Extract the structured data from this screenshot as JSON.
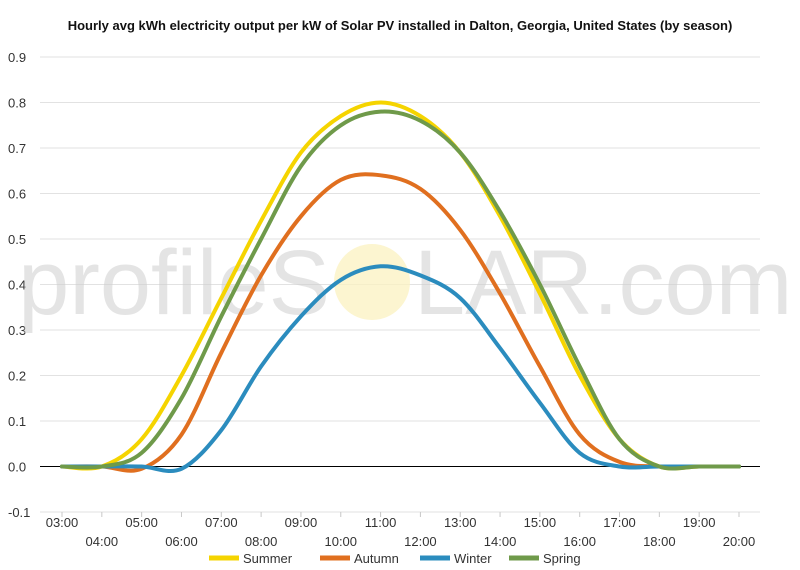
{
  "chart_data": {
    "type": "line",
    "title": "Hourly avg kWh electricity output per kW of Solar PV installed in Dalton, Georgia, United States (by season)",
    "xlabel": "",
    "ylabel": "",
    "x_ticks": [
      "03:00",
      "04:00",
      "05:00",
      "06:00",
      "07:00",
      "08:00",
      "09:00",
      "10:00",
      "11:00",
      "12:00",
      "13:00",
      "14:00",
      "15:00",
      "16:00",
      "17:00",
      "18:00",
      "19:00",
      "20:00"
    ],
    "y_ticks": [
      "-0.1",
      "0.0",
      "0.1",
      "0.2",
      "0.3",
      "0.4",
      "0.5",
      "0.6",
      "0.7",
      "0.8",
      "0.9"
    ],
    "ylim": [
      -0.1,
      0.9
    ],
    "grid": true,
    "legend_position": "bottom",
    "watermark": {
      "left": "profileS",
      "right": "LAR.com"
    },
    "series": [
      {
        "name": "Summer",
        "color": "#f5d400",
        "values": [
          0,
          0,
          0.06,
          0.2,
          0.37,
          0.54,
          0.69,
          0.77,
          0.8,
          0.77,
          0.69,
          0.55,
          0.38,
          0.2,
          0.06,
          0,
          0,
          0
        ]
      },
      {
        "name": "Autumn",
        "color": "#e06f1f",
        "values": [
          0,
          0,
          -0.005,
          0.07,
          0.25,
          0.42,
          0.55,
          0.63,
          0.64,
          0.61,
          0.52,
          0.38,
          0.22,
          0.07,
          0.01,
          0,
          0,
          0
        ]
      },
      {
        "name": "Winter",
        "color": "#2b8cbe",
        "values": [
          0,
          0,
          0,
          -0.005,
          0.08,
          0.22,
          0.33,
          0.41,
          0.44,
          0.42,
          0.37,
          0.26,
          0.14,
          0.03,
          0,
          0,
          0,
          0
        ]
      },
      {
        "name": "Spring",
        "color": "#6f9a4a",
        "values": [
          0,
          0,
          0.03,
          0.15,
          0.33,
          0.5,
          0.66,
          0.75,
          0.78,
          0.76,
          0.69,
          0.56,
          0.4,
          0.22,
          0.06,
          0,
          0,
          0
        ]
      }
    ]
  }
}
